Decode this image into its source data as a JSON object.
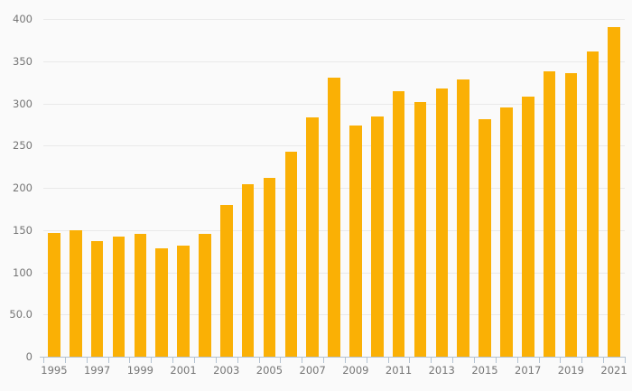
{
  "chart_data": {
    "type": "bar",
    "title": "",
    "xlabel": "",
    "ylabel": "",
    "categories": [
      "1995",
      "1996",
      "1997",
      "1998",
      "1999",
      "2000",
      "2001",
      "2002",
      "2003",
      "2004",
      "2005",
      "2006",
      "2007",
      "2008",
      "2009",
      "2010",
      "2011",
      "2012",
      "2013",
      "2014",
      "2015",
      "2016",
      "2017",
      "2018",
      "2019",
      "2020",
      "2021"
    ],
    "values": [
      147,
      150,
      137,
      142,
      145,
      128,
      132,
      146,
      180,
      204,
      212,
      243,
      283,
      330,
      274,
      285,
      314,
      302,
      318,
      328,
      281,
      295,
      308,
      338,
      336,
      362,
      390
    ],
    "ylim": [
      0,
      400
    ],
    "y_ticks": [
      {
        "value": 400,
        "label": "400"
      },
      {
        "value": 350,
        "label": "350"
      },
      {
        "value": 300,
        "label": "300"
      },
      {
        "value": 250,
        "label": "250"
      },
      {
        "value": 200,
        "label": "200"
      },
      {
        "value": 150,
        "label": "150"
      },
      {
        "value": 100,
        "label": "100"
      },
      {
        "value": 50,
        "label": "50.0"
      },
      {
        "value": 0,
        "label": "0"
      }
    ],
    "x_tick_labels_shown": [
      "1995",
      "1997",
      "1999",
      "2001",
      "2003",
      "2005",
      "2007",
      "2009",
      "2011",
      "2013",
      "2015",
      "2017",
      "2019",
      "2021"
    ],
    "x_label_every": 2,
    "grid": true,
    "legend": false,
    "colors": {
      "bar": "#fab005",
      "grid": "#e9e9e9",
      "axis": "#b3c2d1",
      "label": "#757575",
      "background": "#fafafa"
    }
  }
}
